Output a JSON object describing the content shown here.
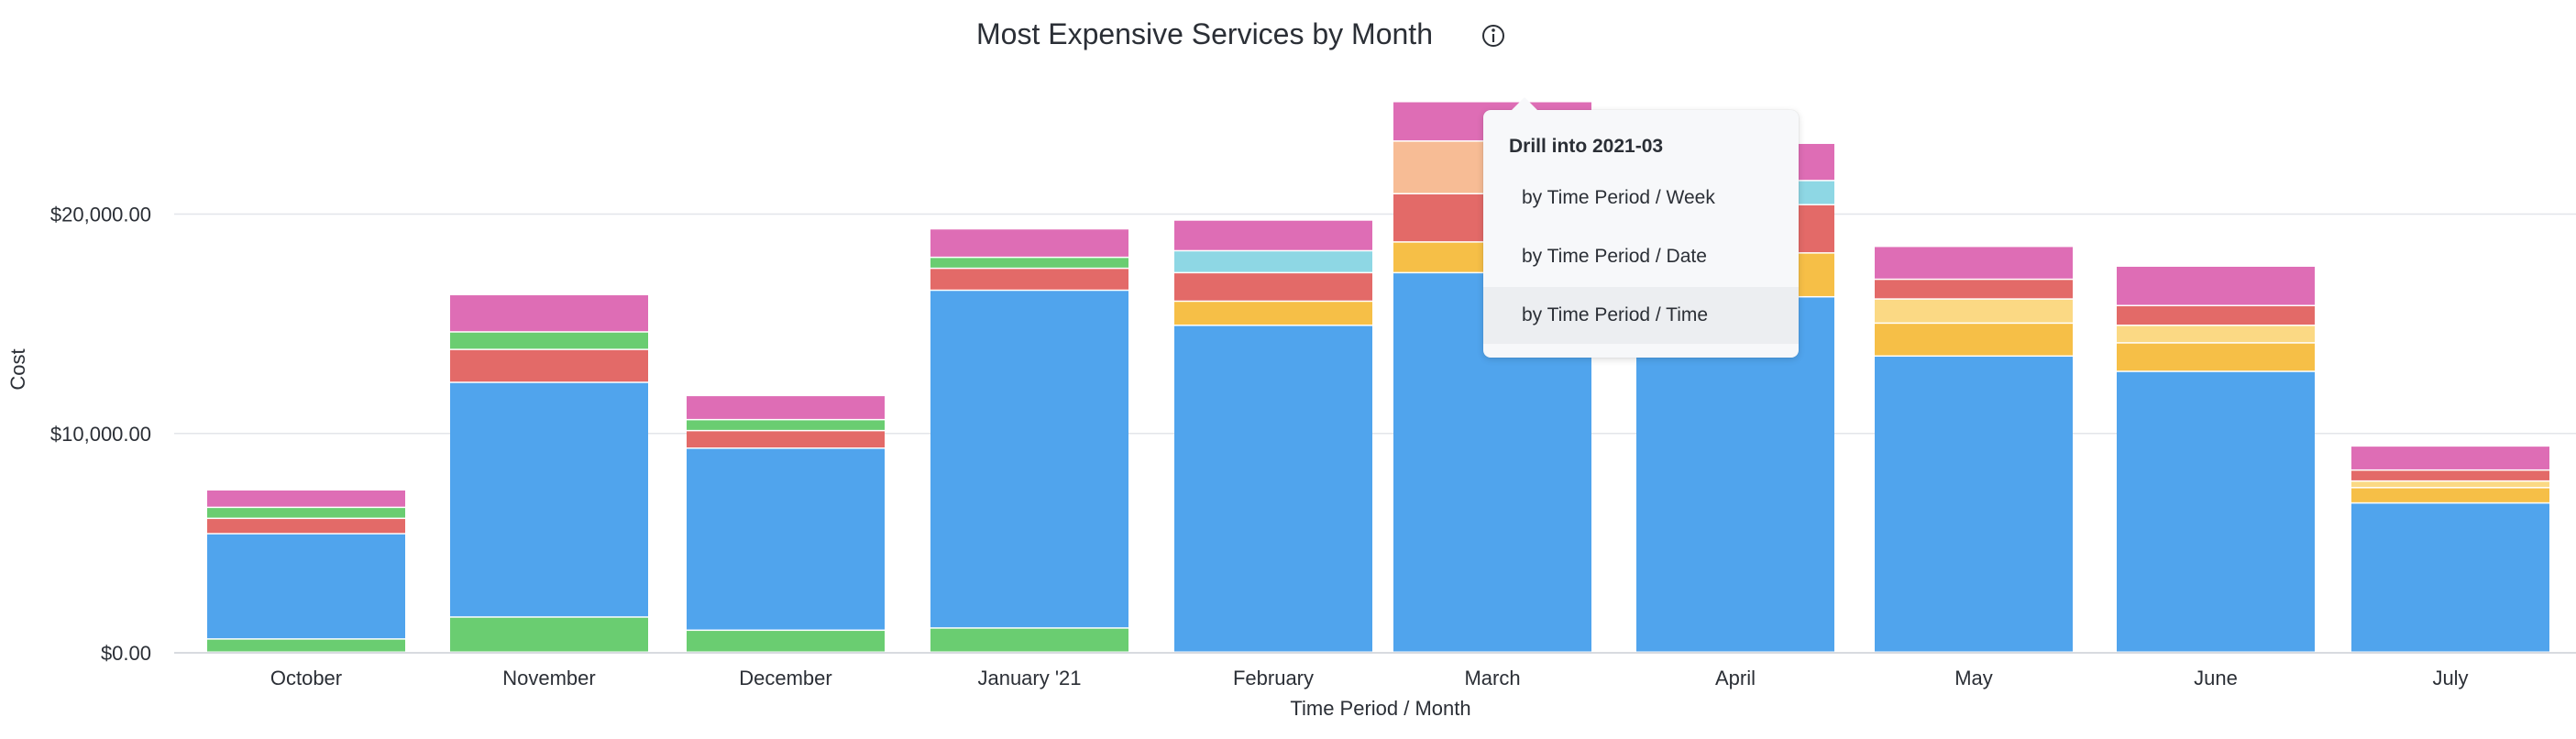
{
  "chart_data": {
    "type": "bar",
    "stacked": true,
    "title": "Most Expensive Services by Month",
    "xlabel": "Time Period / Month",
    "ylabel": "Cost",
    "ylim": [
      0,
      26000
    ],
    "yticks": [
      0,
      10000,
      20000
    ],
    "ytick_labels": [
      "$0.00",
      "$10,000.00",
      "$20,000.00"
    ],
    "grid": true,
    "legend": "none",
    "categories": [
      "October",
      "November",
      "December",
      "January '21",
      "February",
      "March",
      "April",
      "May",
      "June",
      "July"
    ],
    "series": [
      {
        "color": "#6acd71",
        "values": [
          600,
          1600,
          1000,
          1100,
          0,
          0,
          0,
          0,
          0,
          0
        ]
      },
      {
        "color": "#50a4ed",
        "values": [
          4800,
          10700,
          8300,
          15400,
          14900,
          17300,
          16200,
          13500,
          12800,
          6800
        ]
      },
      {
        "color": "#f6bf47",
        "values": [
          0,
          0,
          0,
          0,
          1100,
          1400,
          2000,
          1500,
          1300,
          700
        ]
      },
      {
        "color": "#fbd984",
        "values": [
          0,
          0,
          0,
          0,
          0,
          0,
          0,
          1100,
          800,
          300
        ]
      },
      {
        "color": "#e36a68",
        "values": [
          700,
          1500,
          800,
          1000,
          1300,
          2200,
          2200,
          900,
          900,
          500
        ]
      },
      {
        "color": "#f7bc95",
        "values": [
          0,
          0,
          0,
          0,
          0,
          2400,
          0,
          0,
          0,
          0
        ]
      },
      {
        "color": "#8ed7e4",
        "values": [
          0,
          0,
          0,
          0,
          1000,
          0,
          1100,
          0,
          0,
          0
        ]
      },
      {
        "color": "#6acd71",
        "values": [
          500,
          800,
          500,
          500,
          0,
          0,
          0,
          0,
          0,
          0
        ]
      },
      {
        "color": "#de6db5",
        "values": [
          800,
          1700,
          1100,
          1300,
          1400,
          1800,
          1700,
          1500,
          1800,
          1100
        ]
      }
    ]
  },
  "drill_menu": {
    "title": "Drill into 2021-03",
    "items": [
      "by Time Period / Week",
      "by Time Period / Date",
      "by Time Period / Time"
    ]
  },
  "icons": {
    "title_info": "info-icon"
  },
  "colors": {
    "grid": "#e3e6ea",
    "text": "#2b2f36",
    "axis": "#d8dbe0"
  }
}
